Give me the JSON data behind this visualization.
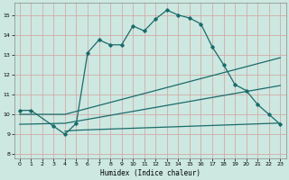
{
  "xlabel": "Humidex (Indice chaleur)",
  "xlim": [
    -0.5,
    23.5
  ],
  "ylim": [
    7.8,
    15.6
  ],
  "yticks": [
    8,
    9,
    10,
    11,
    12,
    13,
    14,
    15
  ],
  "xticks": [
    0,
    1,
    2,
    3,
    4,
    5,
    6,
    7,
    8,
    9,
    10,
    11,
    12,
    13,
    14,
    15,
    16,
    17,
    18,
    19,
    20,
    21,
    22,
    23
  ],
  "bg_color": "#cce8e0",
  "grid_color": "#d4a0a0",
  "line_color": "#1a6b6b",
  "main_x": [
    0,
    1,
    3,
    4,
    5,
    6,
    7,
    8,
    9,
    10,
    11,
    12,
    13,
    14,
    15,
    16,
    17,
    18,
    19,
    20,
    21,
    22,
    23
  ],
  "main_y": [
    10.2,
    10.2,
    9.4,
    9.0,
    9.55,
    13.1,
    13.75,
    13.5,
    13.5,
    14.45,
    14.2,
    14.8,
    15.25,
    15.0,
    14.85,
    14.55,
    13.4,
    12.5,
    11.5,
    11.2,
    10.5,
    10.0,
    9.5
  ],
  "diag1_x": [
    0,
    4,
    5,
    6,
    7,
    8,
    9,
    10,
    11,
    12,
    13,
    14,
    15,
    16,
    17,
    18,
    19,
    20,
    21,
    22,
    23
  ],
  "diag1_y": [
    10.0,
    10.0,
    10.15,
    10.3,
    10.45,
    10.6,
    10.75,
    10.9,
    11.05,
    11.2,
    11.35,
    11.5,
    11.65,
    11.8,
    11.95,
    12.1,
    12.25,
    12.4,
    12.55,
    12.7,
    12.85
  ],
  "diag2_x": [
    0,
    4,
    5,
    6,
    7,
    8,
    9,
    10,
    11,
    12,
    13,
    14,
    15,
    16,
    17,
    18,
    19,
    20,
    21,
    22,
    23
  ],
  "diag2_y": [
    9.5,
    9.55,
    9.65,
    9.75,
    9.85,
    9.95,
    10.05,
    10.15,
    10.25,
    10.35,
    10.45,
    10.55,
    10.65,
    10.75,
    10.85,
    10.95,
    11.05,
    11.15,
    11.25,
    11.35,
    11.45
  ],
  "flat_x": [
    4,
    5,
    6,
    7,
    8,
    9,
    10,
    11,
    12,
    13,
    14,
    15,
    16,
    17,
    18,
    19,
    20,
    21,
    22,
    23
  ],
  "flat_y": [
    9.15,
    9.2,
    9.22,
    9.24,
    9.26,
    9.28,
    9.3,
    9.32,
    9.34,
    9.36,
    9.38,
    9.4,
    9.42,
    9.44,
    9.46,
    9.48,
    9.5,
    9.52,
    9.54,
    9.56
  ]
}
